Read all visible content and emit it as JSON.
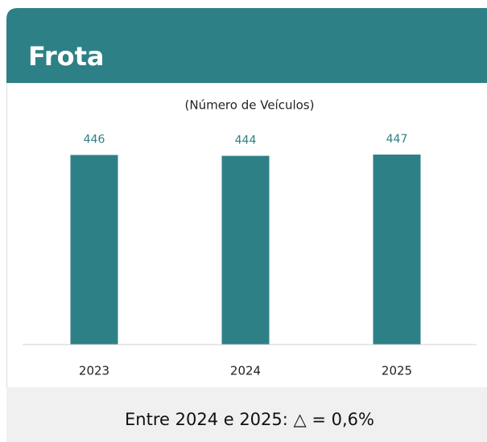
{
  "header": {
    "title": "Frota"
  },
  "chart_data": {
    "type": "bar",
    "subtitle": "(Número de Veículos)",
    "categories": [
      "2023",
      "2024",
      "2025"
    ],
    "values": [
      446,
      444,
      447
    ],
    "color": "#2e8087",
    "ylim": [
      0,
      500
    ]
  },
  "footer": {
    "text": "Entre 2024 e 2025: △ = 0,6%"
  }
}
